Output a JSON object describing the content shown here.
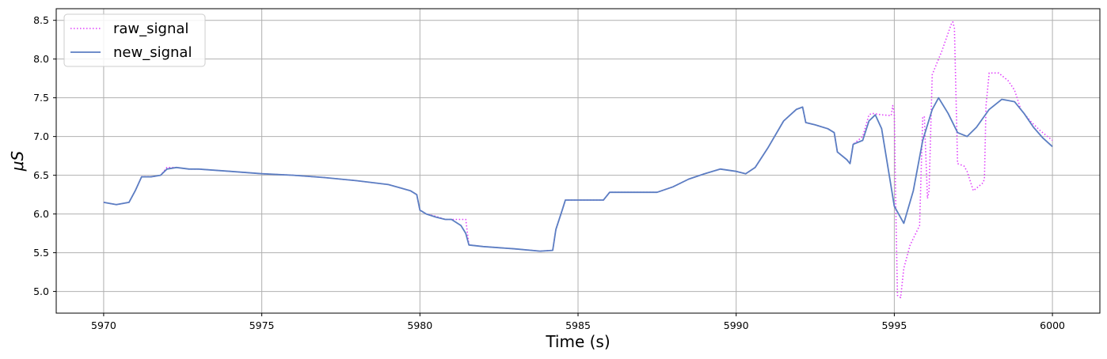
{
  "chart_data": {
    "type": "line",
    "xlabel": "Time (s)",
    "ylabel": "μS",
    "xlim": [
      5968.5,
      6001.5
    ],
    "ylim": [
      4.72,
      8.65
    ],
    "xticks": [
      5970,
      5975,
      5980,
      5985,
      5990,
      5995,
      6000
    ],
    "yticks": [
      5.0,
      5.5,
      6.0,
      6.5,
      7.0,
      7.5,
      8.0,
      8.5
    ],
    "grid": true,
    "legend_position": "upper-left",
    "series": [
      {
        "name": "raw_signal",
        "style": "dotted",
        "color": "#e040fb",
        "x": [
          5970.0,
          5970.4,
          5970.8,
          5971.0,
          5971.2,
          5971.5,
          5971.8,
          5972.0,
          5972.3,
          5972.7,
          5973.0,
          5974.0,
          5975.0,
          5976.0,
          5977.0,
          5978.0,
          5979.0,
          5979.7,
          5979.9,
          5980.0,
          5980.2,
          5980.5,
          5980.8,
          5981.0,
          5981.3,
          5981.45,
          5981.55,
          5982.0,
          5983.0,
          5983.8,
          5984.2,
          5984.3,
          5984.5,
          5984.6,
          5985.0,
          5985.5,
          5985.8,
          5986.0,
          5987.0,
          5987.5,
          5988.0,
          5988.5,
          5989.0,
          5989.5,
          5990.0,
          5990.3,
          5990.6,
          5991.0,
          5991.5,
          5991.9,
          5992.1,
          5992.2,
          5992.5,
          5992.9,
          5993.1,
          5993.2,
          5993.5,
          5993.6,
          5993.7,
          5994.0,
          5994.2,
          5994.3,
          5994.6,
          5994.9,
          5994.95,
          5995.0,
          5995.05,
          5995.1,
          5995.2,
          5995.3,
          5995.5,
          5995.8,
          5995.9,
          5995.95,
          5996.05,
          5996.1,
          5996.2,
          5996.5,
          5996.8,
          5996.85,
          5996.9,
          5997.0,
          5997.2,
          5997.3,
          5997.5,
          5997.8,
          5997.85,
          5997.9,
          5998.0,
          5998.3,
          5998.6,
          5998.8,
          5999.0,
          5999.3,
          5999.6,
          6000.0
        ],
        "y": [
          6.15,
          6.12,
          6.15,
          6.3,
          6.48,
          6.48,
          6.5,
          6.6,
          6.6,
          6.58,
          6.58,
          6.55,
          6.52,
          6.5,
          6.47,
          6.43,
          6.38,
          6.3,
          6.25,
          6.05,
          6.0,
          5.97,
          5.93,
          5.93,
          5.93,
          5.93,
          5.6,
          5.58,
          5.55,
          5.52,
          5.53,
          5.8,
          6.05,
          6.18,
          6.18,
          6.18,
          6.18,
          6.28,
          6.28,
          6.28,
          6.35,
          6.45,
          6.52,
          6.58,
          6.55,
          6.52,
          6.6,
          6.85,
          7.2,
          7.35,
          7.38,
          7.18,
          7.15,
          7.1,
          7.05,
          6.8,
          6.7,
          6.65,
          6.9,
          7.0,
          7.28,
          7.3,
          7.28,
          7.27,
          7.4,
          7.3,
          6.0,
          4.95,
          4.92,
          5.3,
          5.6,
          5.85,
          7.25,
          7.26,
          6.2,
          6.3,
          7.8,
          8.1,
          8.45,
          8.48,
          8.4,
          6.65,
          6.62,
          6.55,
          6.3,
          6.4,
          6.45,
          7.4,
          7.82,
          7.82,
          7.72,
          7.6,
          7.35,
          7.2,
          7.08,
          6.95
        ]
      },
      {
        "name": "new_signal",
        "style": "solid",
        "color": "#5b7ec2",
        "x": [
          5970.0,
          5970.4,
          5970.8,
          5971.0,
          5971.2,
          5971.5,
          5971.8,
          5972.0,
          5972.3,
          5972.7,
          5973.0,
          5974.0,
          5975.0,
          5976.0,
          5977.0,
          5978.0,
          5979.0,
          5979.7,
          5979.9,
          5980.0,
          5980.2,
          5980.5,
          5980.8,
          5981.0,
          5981.3,
          5981.45,
          5981.55,
          5982.0,
          5983.0,
          5983.8,
          5984.2,
          5984.3,
          5984.5,
          5984.6,
          5985.0,
          5985.5,
          5985.8,
          5986.0,
          5987.0,
          5987.5,
          5988.0,
          5988.5,
          5989.0,
          5989.5,
          5990.0,
          5990.3,
          5990.6,
          5991.0,
          5991.5,
          5991.9,
          5992.1,
          5992.2,
          5992.5,
          5992.9,
          5993.1,
          5993.2,
          5993.5,
          5993.6,
          5993.7,
          5994.0,
          5994.2,
          5994.4,
          5994.6,
          5994.8,
          5995.0,
          5995.3,
          5995.6,
          5995.9,
          5996.2,
          5996.4,
          5996.7,
          5997.0,
          5997.3,
          5997.6,
          5998.0,
          5998.4,
          5998.8,
          5999.1,
          5999.4,
          5999.7,
          6000.0
        ],
        "y": [
          6.15,
          6.12,
          6.15,
          6.3,
          6.48,
          6.48,
          6.5,
          6.58,
          6.6,
          6.58,
          6.58,
          6.55,
          6.52,
          6.5,
          6.47,
          6.43,
          6.38,
          6.3,
          6.25,
          6.05,
          6.0,
          5.96,
          5.93,
          5.93,
          5.85,
          5.75,
          5.6,
          5.58,
          5.55,
          5.52,
          5.53,
          5.8,
          6.05,
          6.18,
          6.18,
          6.18,
          6.18,
          6.28,
          6.28,
          6.28,
          6.35,
          6.45,
          6.52,
          6.58,
          6.55,
          6.52,
          6.6,
          6.85,
          7.2,
          7.35,
          7.38,
          7.18,
          7.15,
          7.1,
          7.05,
          6.8,
          6.7,
          6.65,
          6.9,
          6.95,
          7.2,
          7.28,
          7.1,
          6.6,
          6.1,
          5.88,
          6.3,
          6.95,
          7.35,
          7.5,
          7.3,
          7.05,
          7.0,
          7.12,
          7.35,
          7.48,
          7.45,
          7.3,
          7.12,
          6.98,
          6.87
        ]
      }
    ]
  }
}
